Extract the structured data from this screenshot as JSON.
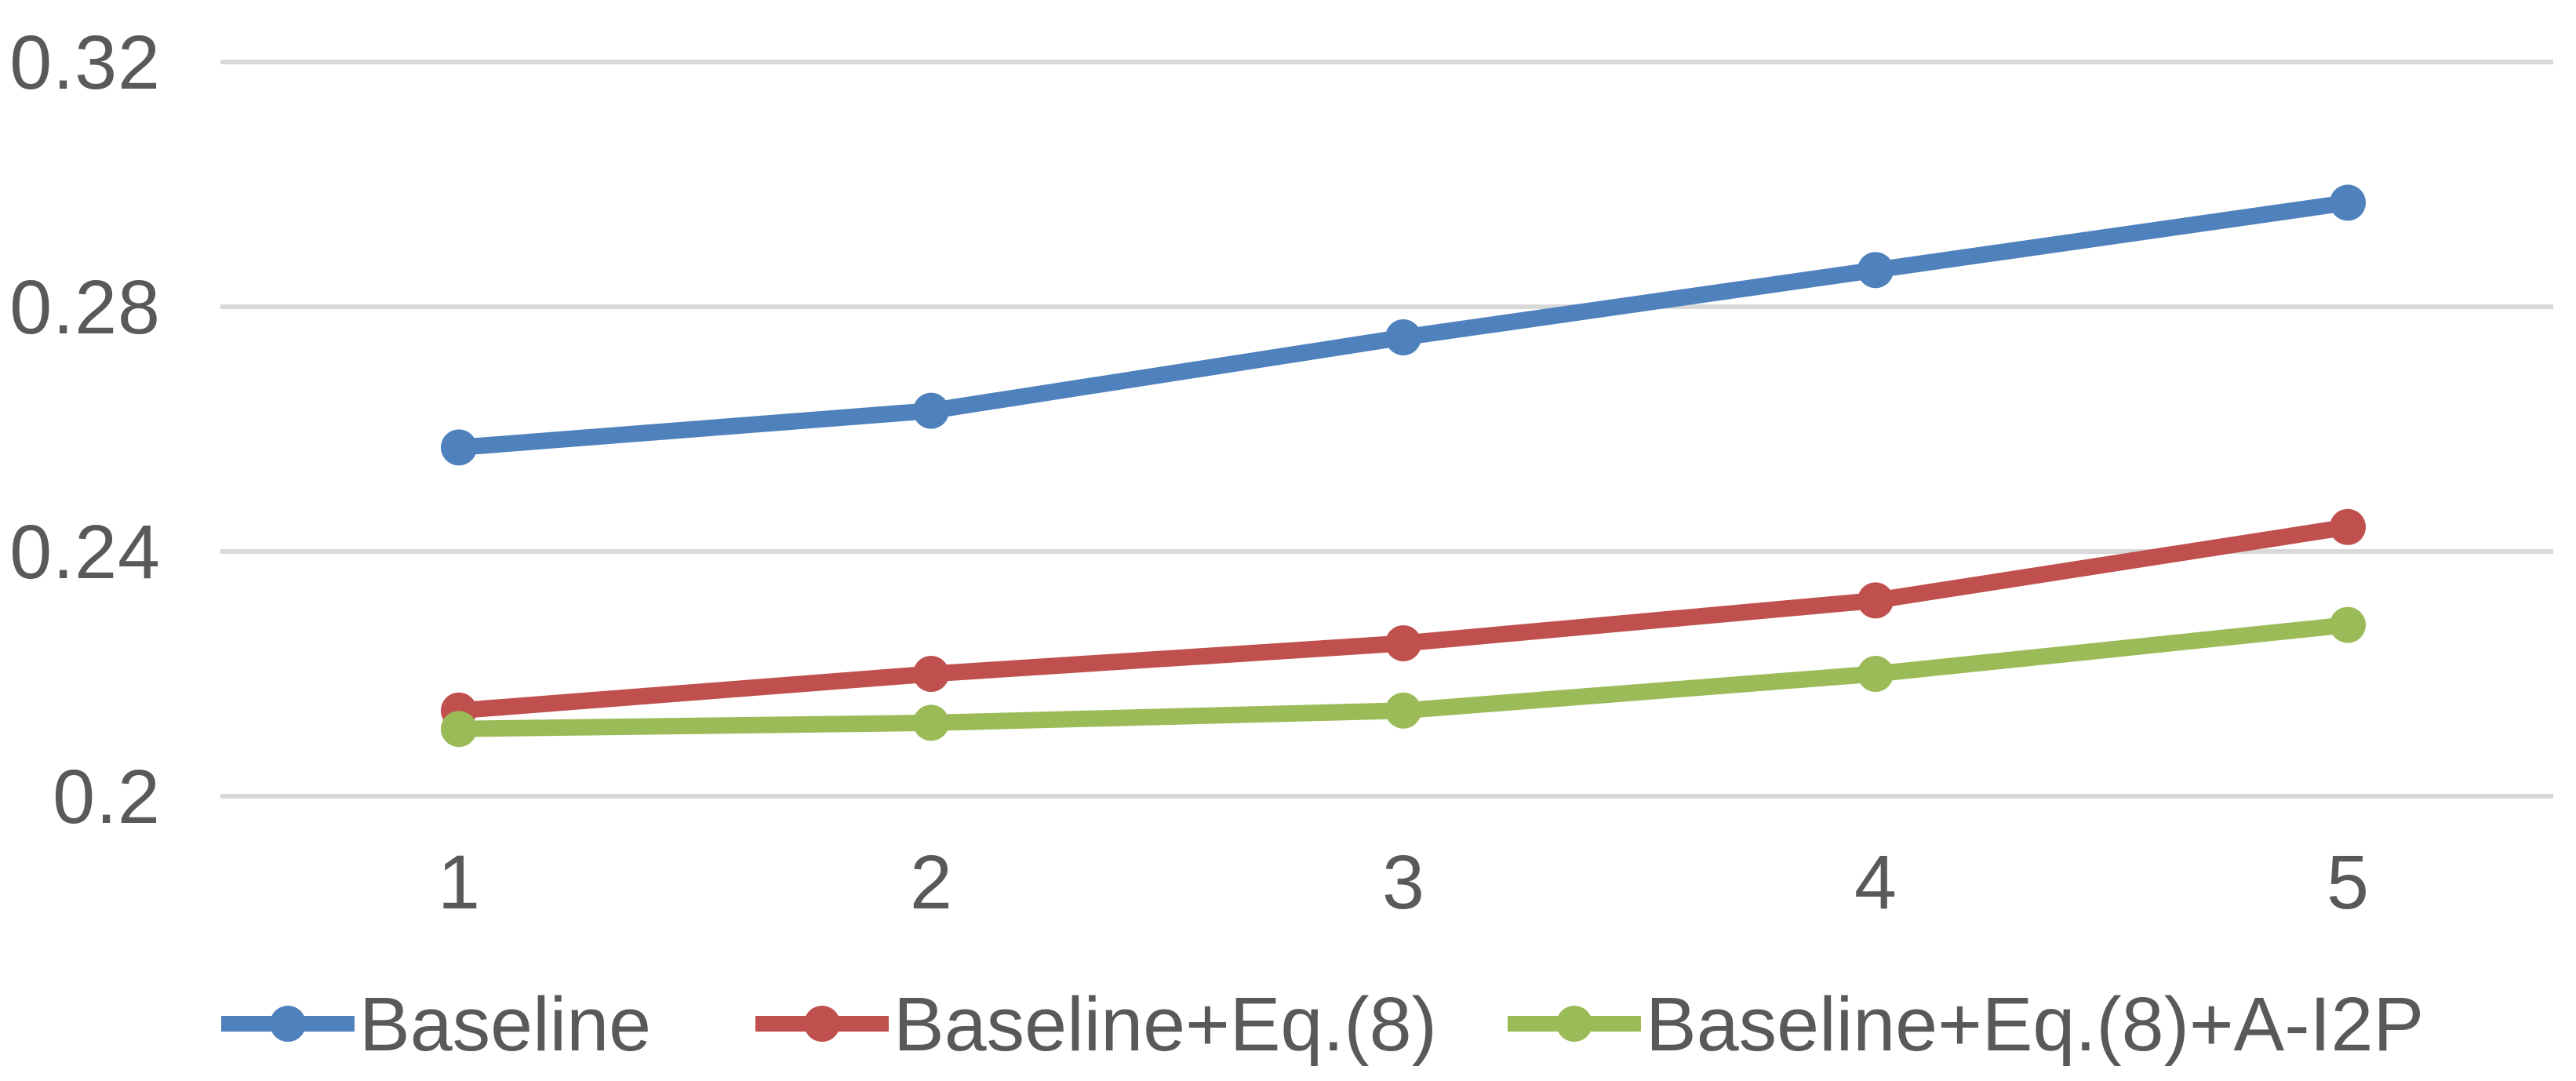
{
  "chart_data": {
    "type": "line",
    "title": "",
    "xlabel": "",
    "ylabel": "",
    "x": [
      1,
      2,
      3,
      4,
      5
    ],
    "x_tick_labels": [
      "1",
      "2",
      "3",
      "4",
      "5"
    ],
    "y_ticks": [
      0.32,
      0.28,
      0.24,
      0.2
    ],
    "y_tick_labels": [
      "0.32",
      "0.28",
      "0.24",
      "0.2"
    ],
    "ylim": [
      0.2,
      0.32
    ],
    "grid": "horizontal",
    "legend_position": "bottom",
    "marker": "circle",
    "series": [
      {
        "name": "Baseline",
        "color": "#4F81BD",
        "values": [
          0.257,
          0.263,
          0.275,
          0.286,
          0.297
        ]
      },
      {
        "name": "Baseline+Eq.(8)",
        "color": "#C0504D",
        "values": [
          0.214,
          0.22,
          0.225,
          0.232,
          0.244
        ]
      },
      {
        "name": "Baseline+Eq.(8)+A-I2P",
        "color": "#9BBB59",
        "values": [
          0.211,
          0.212,
          0.214,
          0.22,
          0.228
        ]
      }
    ]
  },
  "colors": {
    "text": "#595959",
    "gridline": "#D9D9D9",
    "background": "#FFFFFF"
  }
}
